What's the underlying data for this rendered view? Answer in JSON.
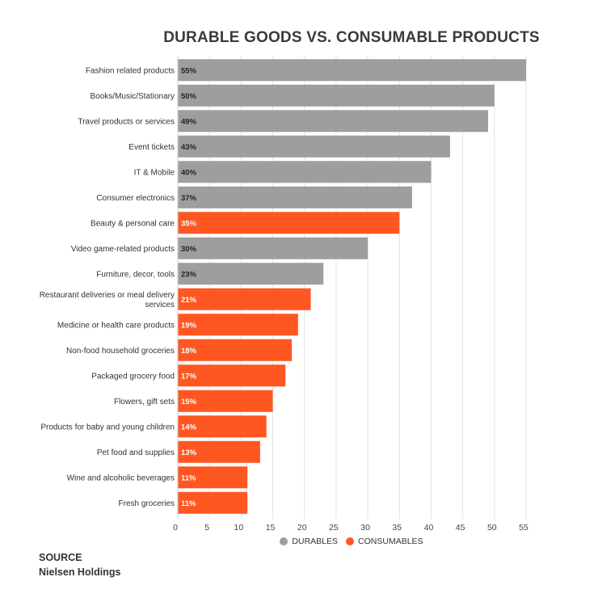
{
  "title": "DURABLE GOODS VS. CONSUMABLE PRODUCTS",
  "source": {
    "label": "SOURCE",
    "value": "Nielsen Holdings"
  },
  "legend": [
    {
      "name": "DURABLES",
      "color": "#9e9e9e"
    },
    {
      "name": "CONSUMABLES",
      "color": "#ff5722"
    }
  ],
  "chart_data": {
    "type": "bar",
    "orientation": "horizontal",
    "title": "DURABLE GOODS VS. CONSUMABLE PRODUCTS",
    "xlim": [
      0,
      55
    ],
    "xticks": [
      0,
      5,
      10,
      15,
      20,
      25,
      30,
      35,
      40,
      45,
      50,
      55
    ],
    "grid": true,
    "legend_position": "bottom",
    "categories": [
      "Fashion related products",
      "Books/Music/Stationary",
      "Travel products or services",
      "Event tickets",
      "IT & Mobile",
      "Consumer electronics",
      "Beauty & personal care",
      "Video game-related products",
      "Furniture, decor, tools",
      "Restaurant deliveries or meal delivery services",
      "Medicine or health care products",
      "Non-food household groceries",
      "Packaged grocery food",
      "Flowers, gift sets",
      "Products for baby and young children",
      "Pet food and supplies",
      "Wine and alcoholic beverages",
      "Fresh groceries"
    ],
    "category_lines": [
      [
        "Fashion related products"
      ],
      [
        "Books/Music/Stationary"
      ],
      [
        "Travel products or services"
      ],
      [
        "Event tickets"
      ],
      [
        "IT & Mobile"
      ],
      [
        "Consumer electronics"
      ],
      [
        "Beauty & personal care"
      ],
      [
        "Video game-related products"
      ],
      [
        "Furniture, decor, tools"
      ],
      [
        "Restaurant deliveries or meal delivery",
        "services"
      ],
      [
        "Medicine or health care products"
      ],
      [
        "Non-food household groceries"
      ],
      [
        "Packaged grocery food"
      ],
      [
        "Flowers, gift sets"
      ],
      [
        "Products for baby and young children"
      ],
      [
        "Pet food and supplies"
      ],
      [
        "Wine and alcoholic beverages"
      ],
      [
        "Fresh groceries"
      ]
    ],
    "values": [
      55,
      50,
      49,
      43,
      40,
      37,
      35,
      30,
      23,
      21,
      19,
      18,
      17,
      15,
      14,
      13,
      11,
      11
    ],
    "value_labels": [
      "55%",
      "50%",
      "49%",
      "43%",
      "40%",
      "37%",
      "35%",
      "30%",
      "23%",
      "21%",
      "19%",
      "18%",
      "17%",
      "15%",
      "14%",
      "13%",
      "11%",
      "11%"
    ],
    "groups": [
      "DURABLES",
      "DURABLES",
      "DURABLES",
      "DURABLES",
      "DURABLES",
      "DURABLES",
      "CONSUMABLES",
      "DURABLES",
      "DURABLES",
      "CONSUMABLES",
      "CONSUMABLES",
      "CONSUMABLES",
      "CONSUMABLES",
      "CONSUMABLES",
      "CONSUMABLES",
      "CONSUMABLES",
      "CONSUMABLES",
      "CONSUMABLES"
    ]
  }
}
